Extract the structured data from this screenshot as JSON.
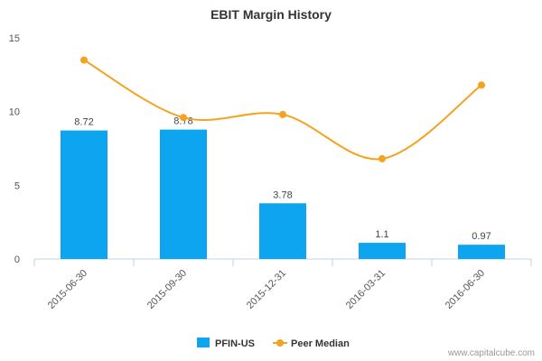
{
  "chart_data": {
    "type": "bar",
    "title": "EBIT Margin History",
    "categories": [
      "2015-06-30",
      "2015-09-30",
      "2015-12-31",
      "2016-03-31",
      "2016-06-30"
    ],
    "series": [
      {
        "name": "PFIN-US",
        "type": "bar",
        "color": "#0ea5f0",
        "values": [
          8.72,
          8.78,
          3.78,
          1.1,
          0.97
        ],
        "labels": [
          "8.72",
          "8.78",
          "3.78",
          "1.1",
          "0.97"
        ]
      },
      {
        "name": "Peer Median",
        "type": "line",
        "color": "#f5a21f",
        "values": [
          13.5,
          9.6,
          9.8,
          6.8,
          11.8
        ]
      }
    ],
    "ylim": [
      0,
      15
    ],
    "yticks": [
      "0",
      "5",
      "10",
      "15"
    ],
    "ytick_values": [
      0,
      5,
      10,
      15
    ],
    "grid": false,
    "legend_position": "bottom"
  },
  "credit": "www.capitalcube.com"
}
